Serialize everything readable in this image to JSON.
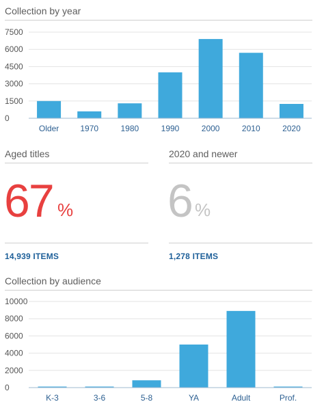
{
  "chart_year": {
    "title": "Collection by year",
    "chart_data": {
      "type": "bar",
      "categories": [
        "Older",
        "1970",
        "1980",
        "1990",
        "2000",
        "2010",
        "2020"
      ],
      "values": [
        1500,
        600,
        1300,
        4000,
        6900,
        5700,
        1250
      ],
      "yticks": [
        0,
        1500,
        3000,
        4500,
        6000,
        7500
      ],
      "ylim": [
        0,
        7500
      ],
      "grid": true,
      "bar_color": "#3fa9dc"
    }
  },
  "aged": {
    "label": "Aged titles",
    "value": "67",
    "percent_sign": "%",
    "items": "14,939 ITEMS",
    "color": "#e8403f"
  },
  "newer": {
    "label": "2020 and newer",
    "value": "6",
    "percent_sign": "%",
    "items": "1,278 ITEMS",
    "color": "#c4c4c4"
  },
  "chart_audience": {
    "title": "Collection by audience",
    "chart_data": {
      "type": "bar",
      "categories": [
        "K-3",
        "3-6",
        "5-8",
        "YA",
        "Adult",
        "Prof."
      ],
      "values": [
        60,
        120,
        850,
        5000,
        8900,
        50
      ],
      "yticks": [
        0,
        2000,
        4000,
        6000,
        8000,
        10000
      ],
      "ylim": [
        0,
        10000
      ],
      "grid": true,
      "bar_color": "#3fa9dc"
    }
  }
}
